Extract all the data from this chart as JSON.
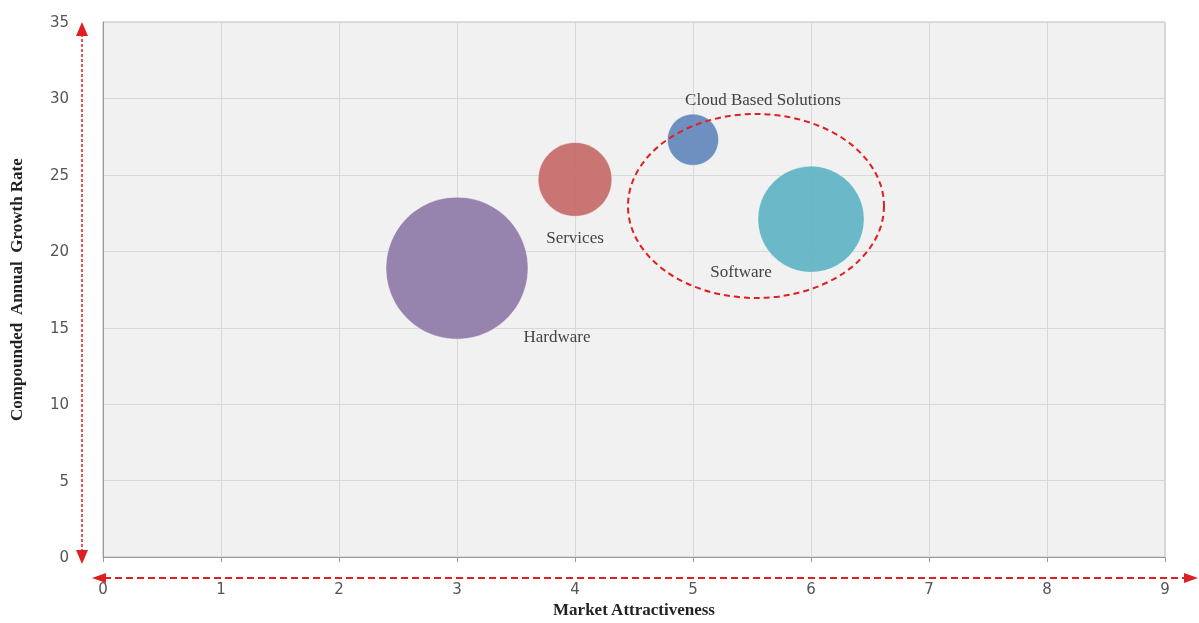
{
  "chart_data": {
    "type": "bubble",
    "xlabel": "Market Attractiveness",
    "ylabel": "Compounded  Annual  Growth Rate",
    "xlim": [
      0,
      9
    ],
    "xticks": [
      0,
      1,
      2,
      3,
      4,
      5,
      6,
      7,
      8,
      9
    ],
    "ylim": [
      0,
      35
    ],
    "yticks": [
      0,
      5,
      10,
      15,
      20,
      25,
      30,
      35
    ],
    "grid": true,
    "legend": false,
    "series": [
      {
        "name": "Hardware",
        "color": "#8e79a8",
        "x": [
          3
        ],
        "values": [
          18.9
        ],
        "sizes": [
          1
        ]
      },
      {
        "name": "Services",
        "color": "#c56a68",
        "x": [
          4
        ],
        "values": [
          24.7
        ],
        "sizes": [
          0.27
        ]
      },
      {
        "name": "Cloud Based Solutions",
        "color": "#6288bd",
        "x": [
          5
        ],
        "values": [
          27.3
        ],
        "sizes": [
          0.13
        ]
      },
      {
        "name": "Software",
        "color": "#5fb3c6",
        "x": [
          6
        ],
        "values": [
          22.1
        ],
        "sizes": [
          0.56
        ]
      }
    ]
  }
}
